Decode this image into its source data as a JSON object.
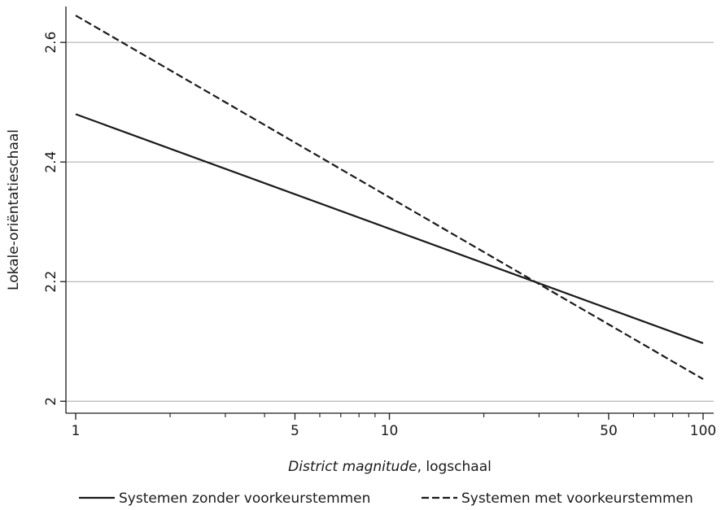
{
  "chart_data": {
    "type": "line",
    "xlabel": {
      "italic": "District magnitude",
      "rest": ", logschaal"
    },
    "ylabel": "Lokale-oriëntatieschaal",
    "x_scale": "log",
    "xlim": [
      1,
      100
    ],
    "ylim": [
      1.98,
      2.66
    ],
    "x_tick_labels": [
      {
        "value": 1,
        "label": "1"
      },
      {
        "value": 5,
        "label": "5"
      },
      {
        "value": 10,
        "label": "10"
      },
      {
        "value": 50,
        "label": "50"
      },
      {
        "value": 100,
        "label": "100"
      }
    ],
    "x_minor_ticks": [
      2,
      3,
      4,
      6,
      7,
      8,
      9,
      20,
      30,
      40,
      60,
      70,
      80,
      90
    ],
    "y_ticks": [
      {
        "value": 2,
        "label": "2"
      },
      {
        "value": 2.2,
        "label": "2.2"
      },
      {
        "value": 2.4,
        "label": "2.4"
      },
      {
        "value": 2.6,
        "label": "2.6"
      }
    ],
    "grid": "horizontal",
    "legend_position": "bottom",
    "series": [
      {
        "name": "Systemen zonder voorkeurstemmen",
        "style": "solid",
        "color": "#1a1a1a",
        "x": [
          1,
          100
        ],
        "y": [
          2.48,
          2.097
        ]
      },
      {
        "name": "Systemen met voorkeurstemmen",
        "style": "dashed",
        "color": "#1a1a1a",
        "x": [
          1,
          100
        ],
        "y": [
          2.645,
          2.037
        ]
      }
    ]
  }
}
